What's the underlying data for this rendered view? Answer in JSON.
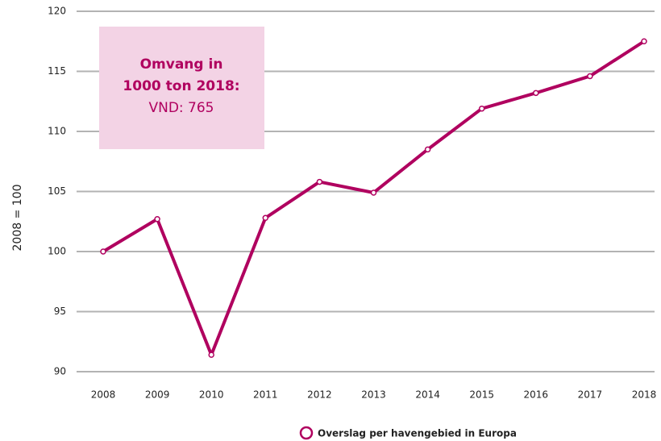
{
  "chart_data": {
    "type": "line",
    "y_label": "2008 = 100",
    "categories": [
      "2008",
      "2009",
      "2010",
      "2011",
      "2012",
      "2013",
      "2014",
      "2015",
      "2016",
      "2017",
      "2018"
    ],
    "series": [
      {
        "name": "Overslag per havengebied in Europa",
        "color": "#b0005f",
        "values": [
          100,
          102.7,
          91.4,
          102.8,
          105.8,
          104.9,
          108.5,
          111.9,
          113.2,
          114.6,
          117.5
        ]
      }
    ],
    "ylim": [
      90,
      120
    ],
    "yticks": [
      90,
      95,
      100,
      105,
      110,
      115,
      120
    ],
    "grid": true,
    "legend": "bottom",
    "annotation": {
      "lines": [
        "Omvang in",
        "1000 ton 2018:",
        "VND: 765"
      ],
      "color": "#f3d3e5"
    }
  }
}
